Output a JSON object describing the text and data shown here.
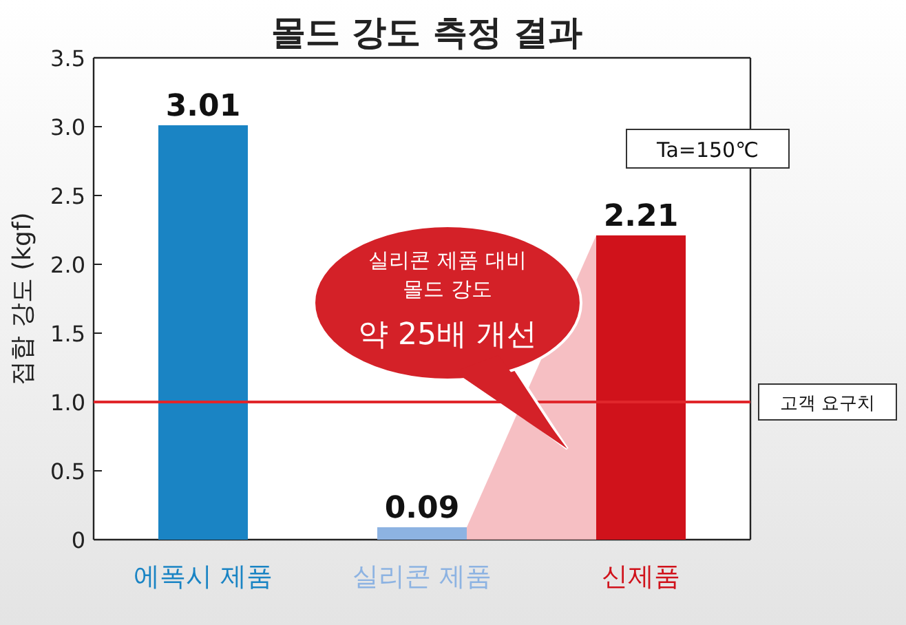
{
  "chart_data": {
    "type": "bar",
    "title": "몰드 강도 측정 결과",
    "ylabel": "접합 강도 (kgf)",
    "categories": [
      "에폭시 제품",
      "실리콘 제품",
      "신제품"
    ],
    "values": [
      3.01,
      0.09,
      2.21
    ],
    "colors": [
      "#1a84c4",
      "#8db3e2",
      "#d0121b"
    ],
    "data_labels": true,
    "ylim": [
      0,
      3.5
    ],
    "yticks": [
      0,
      0.5,
      {
        "value": 1,
        "label": "1.0"
      },
      1.5,
      {
        "value": 2,
        "label": "2.0"
      },
      2.5,
      {
        "value": 3,
        "label": "3.0"
      },
      3.5
    ],
    "ref_lines": [
      {
        "axis": "y",
        "value": 1.0,
        "label": "고객 요구치",
        "color": "#e0262b"
      }
    ],
    "annotations": [
      "Ta=150℃",
      "실리콘 제품 대비\n몰드 강도\n약 25배 개선"
    ]
  }
}
